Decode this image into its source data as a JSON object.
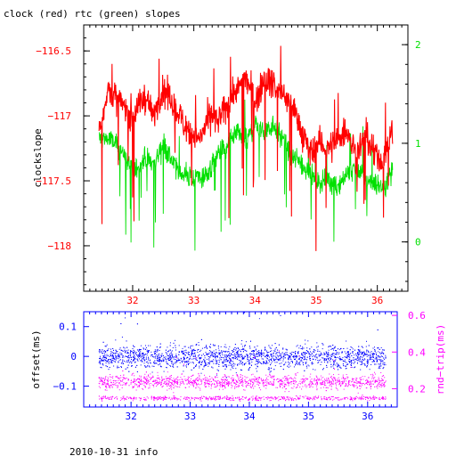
{
  "header": {
    "title": "clock (red) rtc (green) slopes"
  },
  "footer": {
    "caption": "2010-10-31 info"
  },
  "colors": {
    "red": "#ff0000",
    "green": "#00e000",
    "blue": "#0000ff",
    "magenta": "#ff00ff",
    "frame": "#000000"
  },
  "chart_data": [
    {
      "type": "line",
      "title": "clock (red) rtc (green) slopes",
      "ylabel": "clockslope",
      "xlim": [
        31.2,
        36.5
      ],
      "xticks": [
        32,
        33,
        34,
        35,
        36
      ],
      "xtick_labels": [
        "32",
        "33",
        "34",
        "35",
        "36"
      ],
      "ylim_left": [
        -118.35,
        -116.3
      ],
      "yticks_left": [
        -116.5,
        -117,
        -117.5,
        -118
      ],
      "ytick_labels_left": [
        "−116.5",
        "−117",
        "−117.5",
        "−118"
      ],
      "ylim_right": [
        -0.5,
        2.2
      ],
      "yticks_right": [
        0,
        1,
        2
      ],
      "ytick_labels_right": [
        "0",
        "1",
        "2"
      ],
      "series": [
        {
          "name": "clock",
          "color": "#ff0000",
          "axis": "left",
          "x": [
            31.45,
            31.6,
            31.8,
            32.0,
            32.2,
            32.35,
            32.5,
            32.7,
            32.9,
            33.1,
            33.25,
            33.4,
            33.55,
            33.7,
            33.85,
            34.0,
            34.15,
            34.3,
            34.45,
            34.6,
            34.75,
            34.9,
            35.05,
            35.2,
            35.35,
            35.5,
            35.65,
            35.8,
            35.95,
            36.1,
            36.25
          ],
          "y": [
            -117.1,
            -116.8,
            -116.9,
            -117.0,
            -116.85,
            -117.0,
            -116.8,
            -116.95,
            -117.1,
            -117.2,
            -117.0,
            -117.05,
            -116.9,
            -116.8,
            -116.7,
            -116.9,
            -116.7,
            -116.75,
            -116.85,
            -116.9,
            -117.1,
            -117.3,
            -117.2,
            -117.25,
            -117.2,
            -117.1,
            -117.3,
            -117.15,
            -117.3,
            -117.35,
            -117.1
          ]
        },
        {
          "name": "rtc",
          "color": "#00e000",
          "axis": "right",
          "x": [
            31.45,
            31.6,
            31.8,
            32.0,
            32.2,
            32.35,
            32.5,
            32.7,
            32.9,
            33.1,
            33.25,
            33.4,
            33.55,
            33.7,
            33.85,
            34.0,
            34.15,
            34.3,
            34.45,
            34.6,
            34.75,
            34.9,
            35.05,
            35.2,
            35.35,
            35.5,
            35.65,
            35.8,
            35.95,
            36.1,
            36.25
          ],
          "y": [
            1.05,
            1.05,
            0.95,
            0.7,
            0.85,
            0.8,
            1.0,
            0.75,
            0.65,
            0.65,
            0.7,
            0.9,
            0.95,
            1.1,
            1.0,
            1.2,
            1.1,
            1.2,
            1.05,
            0.85,
            0.8,
            0.7,
            0.6,
            0.65,
            0.55,
            0.7,
            0.75,
            0.65,
            0.6,
            0.55,
            0.75
          ]
        }
      ]
    },
    {
      "type": "scatter",
      "ylabel": "offset(ms)",
      "y2label": "rnd−trip(ms)",
      "xlim": [
        31.2,
        36.5
      ],
      "xticks": [
        32,
        33,
        34,
        35,
        36
      ],
      "xtick_labels": [
        "32",
        "33",
        "34",
        "35",
        "36"
      ],
      "ylim_left": [
        -0.17,
        0.15
      ],
      "yticks_left": [
        0.1,
        0,
        -0.1
      ],
      "ytick_labels_left": [
        "0.1",
        "0",
        "−0.1"
      ],
      "ylim_right": [
        0.1,
        0.62
      ],
      "yticks_right": [
        0.6,
        0.4,
        0.2
      ],
      "ytick_labels_right": [
        "0.6",
        "0.4",
        "0.2"
      ],
      "series": [
        {
          "name": "offset",
          "color": "#0000ff",
          "axis": "left",
          "x_range": [
            31.45,
            36.3
          ],
          "center": 0.0,
          "spread": 0.05
        },
        {
          "name": "rnd-trip",
          "color": "#ff00ff",
          "axis": "right",
          "x_range": [
            31.45,
            36.3
          ],
          "center": 0.24,
          "spread": 0.05,
          "lower_band": 0.15
        }
      ]
    }
  ]
}
